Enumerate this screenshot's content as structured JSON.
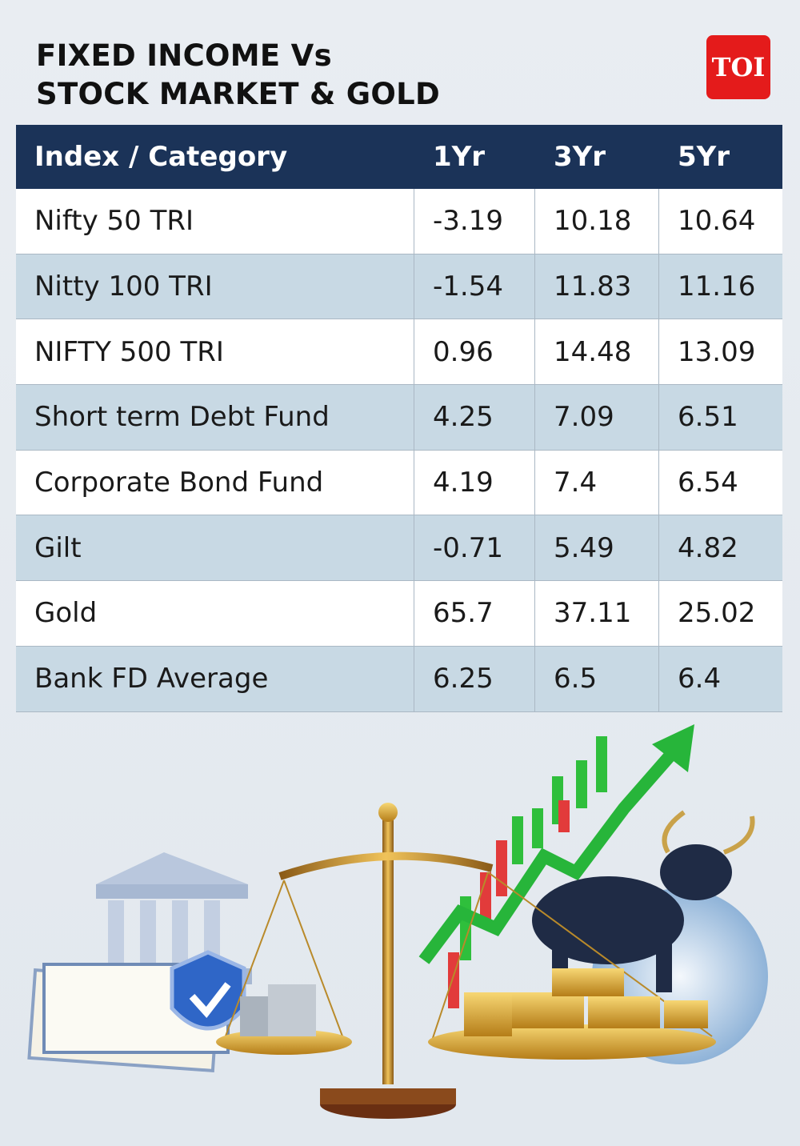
{
  "header": {
    "title": [
      "FIXED INCOME Vs",
      "STOCK MARKET & GOLD"
    ],
    "logo": "TOI"
  },
  "table": {
    "columns": [
      "Index / Category",
      "1Yr",
      "3Yr",
      "5Yr"
    ],
    "rows": [
      [
        "Nifty 50 TRI",
        -3.19,
        10.18,
        10.64
      ],
      [
        "Nitty 100 TRI",
        -1.54,
        11.83,
        11.16
      ],
      [
        "NIFTY 500 TRI",
        0.96,
        14.48,
        13.09
      ],
      [
        "Short term Debt Fund",
        4.25,
        7.09,
        6.51
      ],
      [
        "Corporate Bond Fund",
        4.19,
        7.4,
        6.54
      ],
      [
        "Gilt",
        -0.71,
        5.49,
        4.82
      ],
      [
        "Gold",
        65.7,
        37.11,
        25.02
      ],
      [
        "Bank FD Average",
        6.25,
        6.5,
        6.4
      ]
    ]
  }
}
